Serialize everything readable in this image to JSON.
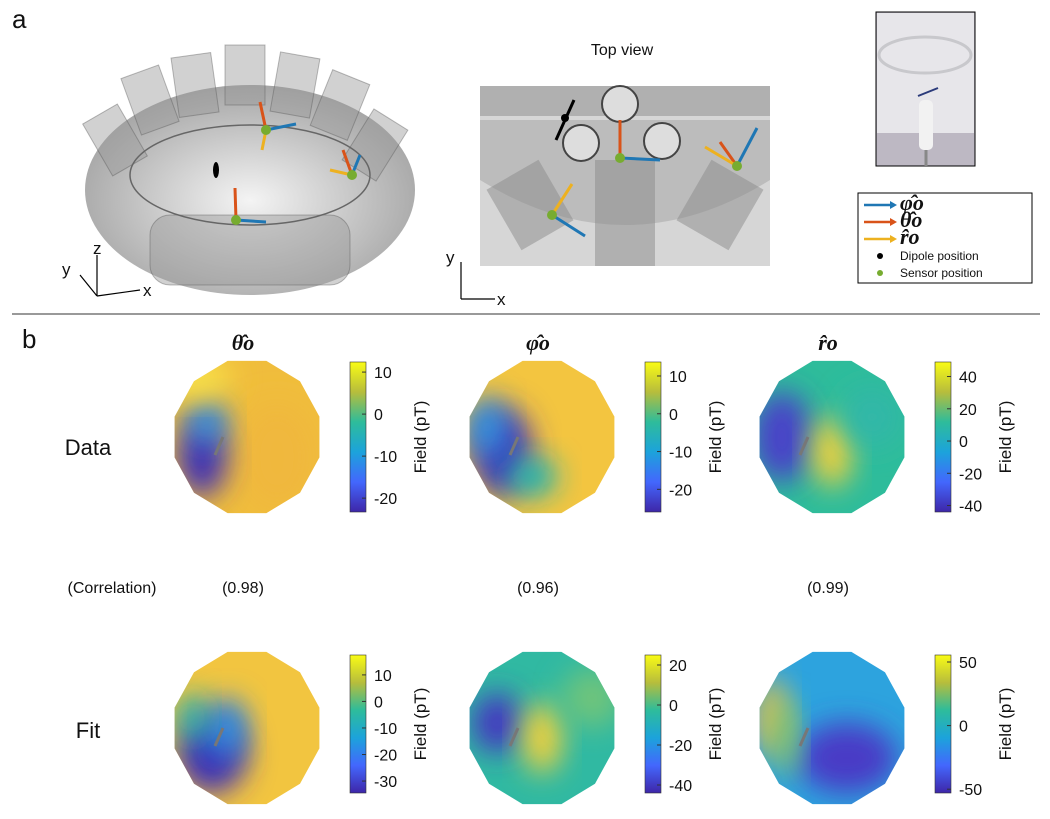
{
  "panel_a": {
    "label": "a",
    "top_view_title": "Top view",
    "left_axes": {
      "y": "y",
      "z": "z",
      "x": "x"
    },
    "right_axes": {
      "y": "y",
      "x": "x"
    },
    "legend": [
      "φ̂o",
      "θ̂o",
      "r̂o",
      "Dipole position",
      "Sensor position"
    ]
  },
  "panel_b": {
    "label": "b",
    "columns": [
      "θ̂o",
      "φ̂o",
      "r̂o"
    ],
    "rows": [
      "Data",
      "Fit"
    ],
    "correlation_label": "(Correlation)",
    "correlations": [
      "(0.98)",
      "(0.96)",
      "(0.99)"
    ],
    "colorbar_label": "Field (pT)",
    "colorbars": [
      [
        {
          "lim": [
            -23.3,
            12.4
          ],
          "ticks": [
            10,
            0,
            -10,
            -20
          ]
        },
        {
          "lim": [
            -26,
            13.7
          ],
          "ticks": [
            10,
            0,
            -10,
            -20
          ]
        },
        {
          "lim": [
            -44,
            49
          ],
          "ticks": [
            40,
            20,
            0,
            -20,
            -40
          ]
        }
      ],
      [
        {
          "lim": [
            -34.5,
            17.5
          ],
          "ticks": [
            10,
            0,
            -10,
            -20,
            -30
          ]
        },
        {
          "lim": [
            -44,
            25
          ],
          "ticks": [
            20,
            0,
            -20,
            -40
          ]
        },
        {
          "lim": [
            -53,
            55.5
          ],
          "ticks": [
            50,
            0,
            -50
          ]
        }
      ]
    ]
  }
}
